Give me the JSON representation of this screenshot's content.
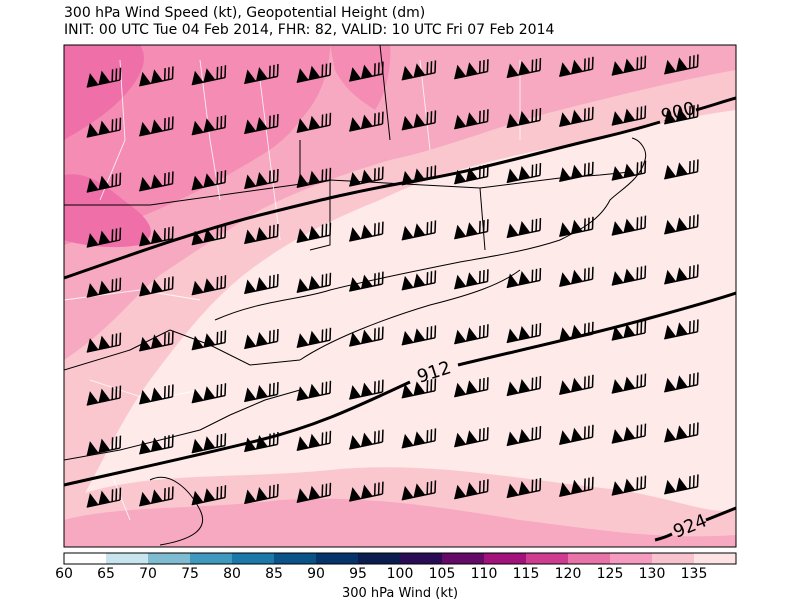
{
  "header": {
    "title_line1": "300 hPa Wind Speed (kt), Geopotential Height (dm)",
    "title_line2": "INIT: 00 UTC Tue 04 Feb 2014, FHR: 82, VALID: 10 UTC Fri 07 Feb 2014"
  },
  "contours": [
    {
      "label": "900"
    },
    {
      "label": "912"
    },
    {
      "label": "924"
    }
  ],
  "colorbar": {
    "title": "300 hPa Wind (kt)",
    "ticks": [
      "60",
      "65",
      "70",
      "75",
      "80",
      "85",
      "90",
      "95",
      "100",
      "105",
      "110",
      "115",
      "120",
      "125",
      "130",
      "135"
    ],
    "colors": [
      "#ffffff",
      "#c7e4ef",
      "#7fbcd2",
      "#3f98bd",
      "#1c78a8",
      "#0a5288",
      "#06336a",
      "#0b1c4f",
      "#2a0c55",
      "#650a67",
      "#a1127b",
      "#cf3b8f",
      "#e873a8",
      "#f49bbf",
      "#f9c2cf",
      "#fde3e3"
    ]
  },
  "wind_field": {
    "shading_colors": {
      "speed_115": "#ef6fa8",
      "speed_120": "#f58cb4",
      "speed_125": "#f7a9c1",
      "speed_130": "#fbc7cf",
      "speed_135": "#fdeae9"
    },
    "barb_color": "#000000"
  }
}
